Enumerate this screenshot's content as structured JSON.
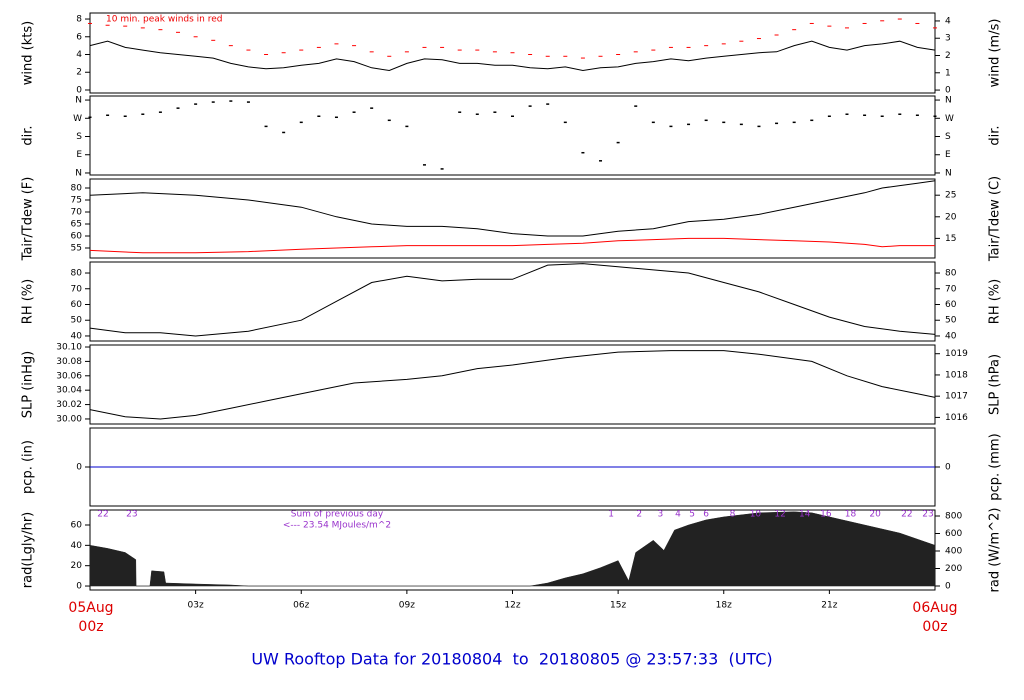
{
  "title": "UW Rooftop Data for 20180804  to  20180805 @ 23:57:33  (UTC)",
  "start_date": "05Aug",
  "start_time": "00z",
  "end_date": "06Aug",
  "end_time": "00z",
  "chart_data": [
    {
      "type": "line",
      "ylabel": "wind (kts)",
      "y2label": "wind (m/s)",
      "annotation": "10 min. peak winds in red",
      "xlim": [
        0,
        24
      ],
      "ylim": [
        -0.34,
        8.68
      ],
      "yticks": [
        0,
        2,
        4,
        6,
        8
      ],
      "y2lim": [
        -0.17,
        4.46
      ],
      "y2ticks": [
        0,
        1,
        2,
        3,
        4
      ],
      "x": [
        0,
        0.5,
        1,
        1.5,
        2,
        2.5,
        3,
        3.5,
        4,
        4.5,
        5,
        5.5,
        6,
        6.5,
        7,
        7.5,
        8,
        8.5,
        9,
        9.5,
        10,
        10.5,
        11,
        11.5,
        12,
        12.5,
        13,
        13.5,
        14,
        14.5,
        15,
        15.5,
        16,
        16.5,
        17,
        17.5,
        18,
        18.5,
        19,
        19.5,
        20,
        20.5,
        21,
        21.5,
        22,
        22.5,
        23,
        23.5,
        24
      ],
      "series": [
        {
          "color": "#000000",
          "values": [
            5,
            5.5,
            4.8,
            4.5,
            4.2,
            4,
            3.8,
            3.6,
            3,
            2.6,
            2.4,
            2.5,
            2.8,
            3,
            3.5,
            3.2,
            2.5,
            2.2,
            3,
            3.5,
            3.4,
            3,
            3,
            2.8,
            2.8,
            2.5,
            2.4,
            2.6,
            2.2,
            2.5,
            2.6,
            3,
            3.2,
            3.5,
            3.3,
            3.6,
            3.8,
            4,
            4.2,
            4.3,
            5,
            5.5,
            4.8,
            4.5,
            5,
            5.2,
            5.5,
            4.8,
            4.5
          ]
        },
        {
          "color": "#ff0000",
          "marker": "dash",
          "values": [
            7.5,
            7.3,
            7.2,
            7,
            6.8,
            6.5,
            6,
            5.6,
            5,
            4.5,
            4,
            4.2,
            4.5,
            4.8,
            5.2,
            5,
            4.3,
            3.8,
            4.3,
            4.8,
            4.8,
            4.5,
            4.5,
            4.3,
            4.2,
            4,
            3.8,
            3.8,
            3.6,
            3.8,
            4,
            4.3,
            4.5,
            4.8,
            4.8,
            5,
            5.2,
            5.5,
            5.8,
            6.2,
            6.8,
            7.5,
            7.2,
            7,
            7.5,
            7.8,
            8,
            7.5,
            7
          ]
        }
      ]
    },
    {
      "type": "scatter",
      "ylabel": "dir.",
      "y2label": "dir.",
      "xlim": [
        0,
        24
      ],
      "ylim": [
        -10,
        380
      ],
      "yticks": [
        {
          "value": 0,
          "label": "N"
        },
        {
          "value": 90,
          "label": "E"
        },
        {
          "value": 180,
          "label": "S"
        },
        {
          "value": 270,
          "label": "W"
        },
        {
          "value": 360,
          "label": "N"
        }
      ],
      "y2lim": [
        -10,
        380
      ],
      "y2ticks": [
        {
          "value": 0,
          "label": "N"
        },
        {
          "value": 90,
          "label": "E"
        },
        {
          "value": 180,
          "label": "S"
        },
        {
          "value": 270,
          "label": "W"
        },
        {
          "value": 360,
          "label": "N"
        }
      ],
      "x": [
        0,
        0.5,
        1,
        1.5,
        2,
        2.5,
        3,
        3.5,
        4,
        4.5,
        5,
        5.5,
        6,
        6.5,
        7,
        7.5,
        8,
        8.5,
        9,
        9.5,
        10,
        10.5,
        11,
        11.5,
        12,
        12.5,
        13,
        13.5,
        14,
        14.5,
        15,
        15.5,
        16,
        16.5,
        17,
        17.5,
        18,
        18.5,
        19,
        19.5,
        20,
        20.5,
        21,
        21.5,
        22,
        22.5,
        23,
        23.5,
        24
      ],
      "series": [
        {
          "color": "#000000",
          "values": [
            275,
            285,
            280,
            290,
            300,
            320,
            340,
            350,
            355,
            350,
            230,
            200,
            250,
            280,
            275,
            300,
            320,
            260,
            230,
            40,
            20,
            300,
            290,
            300,
            280,
            330,
            340,
            250,
            100,
            60,
            150,
            330,
            250,
            230,
            240,
            260,
            250,
            240,
            230,
            245,
            250,
            260,
            280,
            290,
            285,
            280,
            290,
            285,
            280
          ]
        }
      ]
    },
    {
      "type": "line",
      "ylabel": "Tair/Tdew (F)",
      "y2label": "Tair/Tdew (C)",
      "xlim": [
        0,
        24
      ],
      "ylim": [
        50.83,
        83.75
      ],
      "yticks": [
        55,
        60,
        65,
        70,
        75,
        80
      ],
      "y2lim": [
        10.46,
        28.75
      ],
      "y2ticks": [
        15,
        20,
        25
      ],
      "x": [
        0,
        1.5,
        3,
        4.5,
        6,
        7,
        8,
        9,
        10,
        11,
        12,
        13,
        14,
        14.5,
        15,
        16,
        17,
        18,
        19,
        20,
        21,
        22,
        22.5,
        23,
        23.5,
        24
      ],
      "series": [
        {
          "color": "#000000",
          "values": [
            77,
            78,
            77,
            75,
            72,
            68,
            65,
            64,
            64,
            63,
            61,
            60,
            60,
            61,
            62,
            63,
            66,
            67,
            69,
            72,
            75,
            78,
            80,
            81,
            82,
            83
          ]
        },
        {
          "color": "#ff0000",
          "values": [
            54,
            53,
            53,
            53.5,
            54.5,
            55,
            55.5,
            56,
            56,
            56,
            56,
            56.5,
            57,
            57.5,
            58,
            58.5,
            59,
            59,
            58.5,
            58,
            57.5,
            56.5,
            55.5,
            56,
            56,
            56
          ]
        }
      ]
    },
    {
      "type": "line",
      "ylabel": "RH (%)",
      "y2label": "RH (%)",
      "xlim": [
        0,
        24
      ],
      "ylim": [
        36.8,
        87
      ],
      "yticks": [
        40,
        50,
        60,
        70,
        80
      ],
      "y2lim": [
        36.8,
        87
      ],
      "y2ticks": [
        40,
        50,
        60,
        70,
        80
      ],
      "x": [
        0,
        1,
        2,
        3,
        4.5,
        6,
        7,
        8,
        9,
        10,
        11,
        12,
        13,
        14,
        15,
        16,
        17,
        18,
        19,
        20,
        21,
        22,
        23,
        24
      ],
      "series": [
        {
          "color": "#000000",
          "values": [
            45,
            42,
            42,
            40,
            43,
            50,
            62,
            74,
            78,
            75,
            76,
            76,
            85,
            86,
            84,
            82,
            80,
            74,
            68,
            60,
            52,
            46,
            43,
            41
          ]
        }
      ]
    },
    {
      "type": "line",
      "ylabel": "SLP (inHg)",
      "y2label": "SLP (hPa)",
      "xlim": [
        0,
        24
      ],
      "ylim": [
        29.993,
        30.1028
      ],
      "yticks": [
        {
          "value": 30,
          "label": "30.00"
        },
        30.02,
        30.04,
        30.06,
        30.08,
        {
          "value": 30.1,
          "label": "30.10"
        }
      ],
      "y2lim": [
        1015.69,
        1019.41
      ],
      "y2ticks": [
        1016,
        1017,
        1018,
        1019
      ],
      "x": [
        0,
        1,
        2,
        3,
        4,
        5,
        6,
        7.5,
        9,
        10,
        11,
        12,
        13.5,
        15,
        16.5,
        18,
        19,
        20.5,
        21.5,
        22.5,
        23.5,
        24
      ],
      "series": [
        {
          "color": "#000000",
          "values": [
            30.013,
            30.003,
            30,
            30.005,
            30.015,
            30.025,
            30.035,
            30.05,
            30.055,
            30.06,
            30.07,
            30.075,
            30.085,
            30.093,
            30.095,
            30.095,
            30.09,
            30.08,
            30.06,
            30.045,
            30.035,
            30.03
          ]
        }
      ]
    },
    {
      "type": "line",
      "ylabel": "pcp. (in)",
      "y2label": "pcp. (mm)",
      "xlim": [
        0,
        24
      ],
      "ylim": [
        -1,
        1
      ],
      "yticks": [
        0
      ],
      "y2lim": [
        -25.4,
        25.4
      ],
      "y2ticks": [
        0
      ],
      "x": [
        0,
        24
      ],
      "series": [
        {
          "color": "#0000cc",
          "values": [
            0,
            0
          ]
        }
      ]
    },
    {
      "type": "area",
      "ylabel": "rad(Lgly/hr)",
      "y2label": "rad (W/m^2)",
      "annotations": [
        "Sum of previous day",
        "<--- 23.54 MJoules/m^2"
      ],
      "hour_marks": {
        "labels": [
          "22",
          "23",
          "1",
          "2",
          "3",
          "4",
          "5",
          "6",
          "8",
          "10",
          "12",
          "14",
          "16",
          "18",
          "20",
          "22",
          "23"
        ],
        "x": [
          0.37,
          1.19,
          14.8,
          15.6,
          16.2,
          16.7,
          17.1,
          17.5,
          18.25,
          18.9,
          19.6,
          20.3,
          20.9,
          21.6,
          22.3,
          23.2,
          23.8
        ]
      },
      "xlim": [
        0,
        24
      ],
      "ylim": [
        -3.9,
        74.75
      ],
      "yticks": [
        0,
        20,
        40,
        60
      ],
      "y2lim": [
        -45.7,
        868.6
      ],
      "y2ticks": [
        0,
        200,
        400,
        600,
        800
      ],
      "xticks": [
        {
          "value": 3,
          "label": "03z"
        },
        {
          "value": 6,
          "label": "06z"
        },
        {
          "value": 9,
          "label": "09z"
        },
        {
          "value": 12,
          "label": "12z"
        },
        {
          "value": 15,
          "label": "15z"
        },
        {
          "value": 18,
          "label": "18z"
        },
        {
          "value": 21,
          "label": "21z"
        }
      ],
      "x": [
        0,
        0.5,
        1,
        1.3,
        1.31,
        1.7,
        1.75,
        2.1,
        2.15,
        3,
        4,
        4.5,
        12.5,
        13,
        13.5,
        14,
        14.5,
        15,
        15.3,
        15.5,
        16,
        16.3,
        16.6,
        17,
        17.5,
        18,
        19,
        20,
        20.5,
        21,
        22,
        23,
        24
      ],
      "series": [
        {
          "color": "#222222",
          "values": [
            40,
            37,
            33,
            26,
            0,
            0,
            15,
            14,
            3,
            2,
            1,
            0,
            0,
            3,
            8,
            12,
            18,
            25,
            5,
            33,
            45,
            35,
            55,
            60,
            65,
            68,
            72,
            73,
            72,
            68,
            60,
            52,
            40
          ]
        }
      ]
    }
  ]
}
